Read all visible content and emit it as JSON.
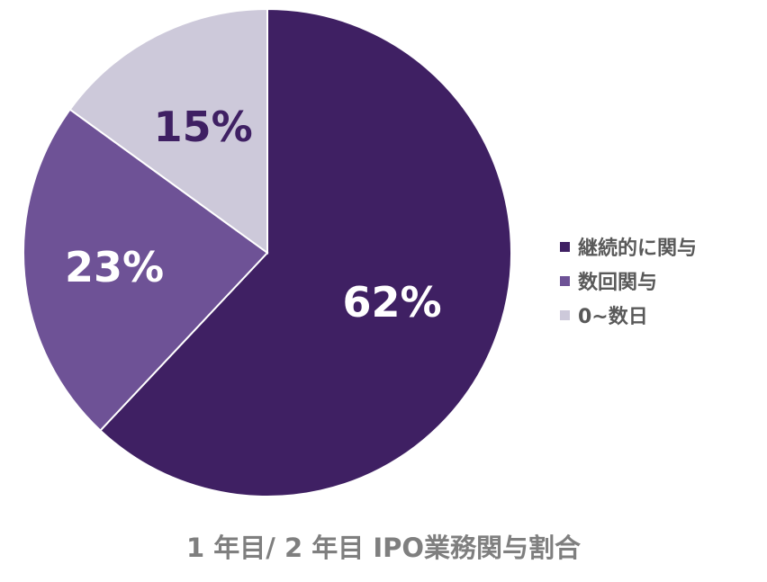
{
  "chart_data": {
    "type": "pie",
    "title": "1 年目/ 2 年目 IPO業務関与割合",
    "categories": [
      "継続的に関与",
      "数回関与",
      "0~数日"
    ],
    "values": [
      62,
      23,
      15
    ],
    "data_labels": [
      "62%",
      "23%",
      "15%"
    ],
    "colors": [
      "#3f2063",
      "#6e5296",
      "#cdc9da"
    ],
    "label_colors": [
      "#ffffff",
      "#ffffff",
      "#3f2063"
    ],
    "start_angle_deg": 0,
    "direction": "clockwise",
    "legend": "right"
  }
}
